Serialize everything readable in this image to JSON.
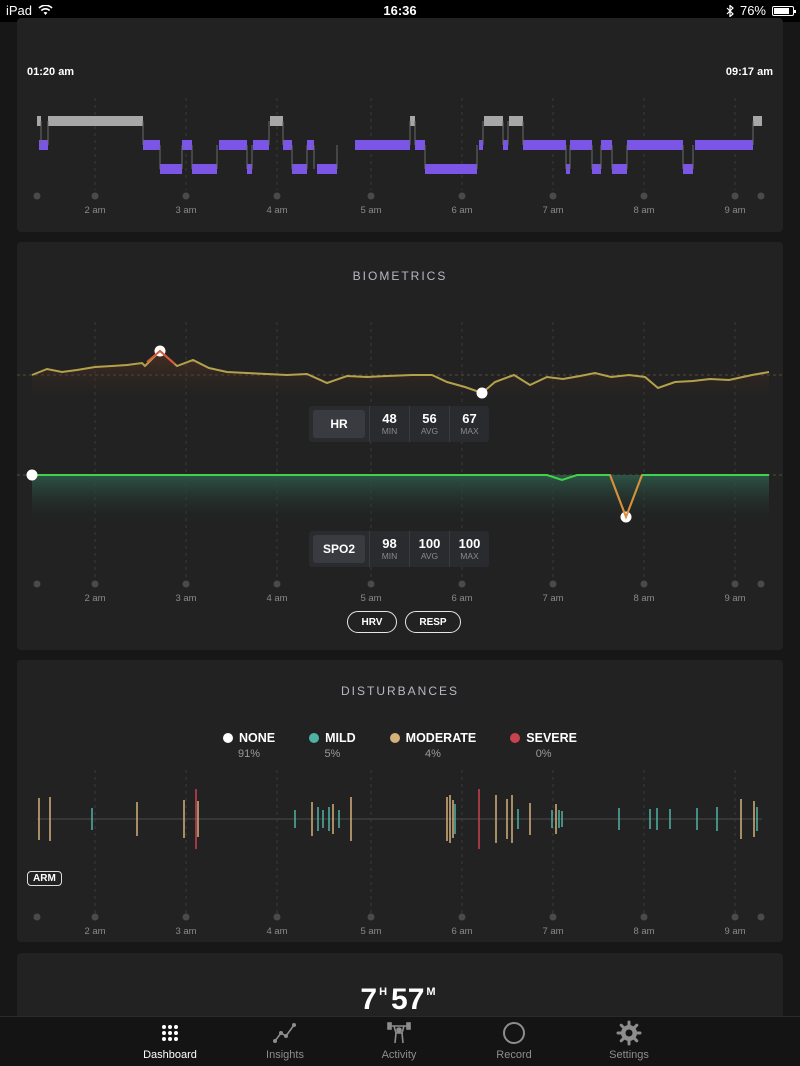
{
  "status_bar": {
    "device": "iPad",
    "time": "16:36",
    "battery": "76%",
    "battery_fraction": 0.76
  },
  "sleep_stages": {
    "start_time": "01:20 am",
    "end_time": "09:17 am"
  },
  "hours": [
    "2 am",
    "3 am",
    "4 am",
    "5 am",
    "6 am",
    "7 am",
    "8 am",
    "9 am"
  ],
  "biometrics": {
    "title": "BIOMETRICS",
    "hr": {
      "label": "HR",
      "min": "48",
      "avg": "56",
      "max": "67"
    },
    "spo2": {
      "label": "SPO2",
      "min": "98",
      "avg": "100",
      "max": "100"
    },
    "hrv_button": "HRV",
    "resp_button": "RESP"
  },
  "disturbances": {
    "title": "DISTURBANCES",
    "legend": [
      {
        "label": "NONE",
        "pct": "91%",
        "color": "#ffffff"
      },
      {
        "label": "MILD",
        "pct": "5%",
        "color": "#4fb3a4"
      },
      {
        "label": "MODERATE",
        "pct": "4%",
        "color": "#d4b07a"
      },
      {
        "label": "SEVERE",
        "pct": "0%",
        "color": "#c9434f"
      }
    ],
    "arm_tag": "ARM"
  },
  "summary": {
    "hours": "7",
    "hours_unit": "H",
    "minutes": "57",
    "minutes_unit": "M"
  },
  "tabs": [
    {
      "label": "Dashboard",
      "icon": "dots-grid-icon",
      "active": true
    },
    {
      "label": "Insights",
      "icon": "trend-line-icon",
      "active": false
    },
    {
      "label": "Activity",
      "icon": "weightlifter-icon",
      "active": false
    },
    {
      "label": "Record",
      "icon": "circle-icon",
      "active": false
    },
    {
      "label": "Settings",
      "icon": "gear-icon",
      "active": false
    }
  ],
  "colors": {
    "deep": "#7b55e6",
    "awake": "#a7a7a7",
    "hr_line": "#b4a24a",
    "hr_peak": "#d9573b",
    "spo2_line": "#3fd24a",
    "spo2_drop": "#e08a3a"
  }
}
